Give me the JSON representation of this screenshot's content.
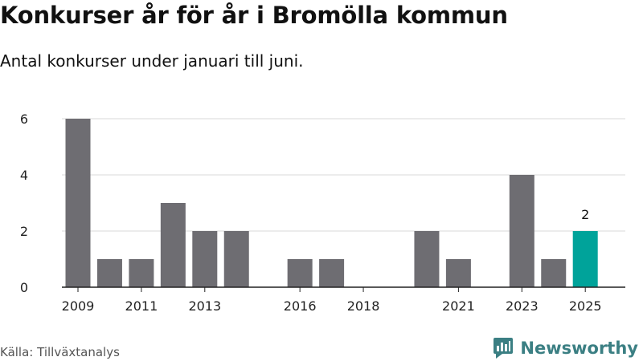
{
  "header": {
    "title": "Konkurser år för år i Bromölla kommun",
    "subtitle": "Antal konkurser under januari till juni."
  },
  "footer": {
    "source": "Källa: Tillväxtanalys",
    "brand": "Newsworthy",
    "brand_icon": "newsworthy-logo-icon"
  },
  "colors": {
    "bar": "#6e6d72",
    "highlight": "#00a39a",
    "grid": "#d9d9d9",
    "axis": "#222222",
    "brand": "#3b7f83"
  },
  "chart_data": {
    "type": "bar",
    "title": "Konkurser år för år i Bromölla kommun",
    "subtitle": "Antal konkurser under januari till juni.",
    "xlabel": "",
    "ylabel": "",
    "categories": [
      "2009",
      "2010",
      "2011",
      "2012",
      "2013",
      "2014",
      "2015",
      "2016",
      "2017",
      "2018",
      "2019",
      "2020",
      "2021",
      "2022",
      "2023",
      "2024",
      "2025"
    ],
    "values": [
      6,
      1,
      1,
      3,
      2,
      2,
      0,
      1,
      1,
      0,
      0,
      2,
      1,
      0,
      4,
      1,
      2
    ],
    "x_tick_labels": [
      "2009",
      "2011",
      "2013",
      "2016",
      "2018",
      "2021",
      "2023",
      "2025"
    ],
    "y_ticks": [
      0,
      2,
      4,
      6
    ],
    "ylim": [
      0,
      6
    ],
    "grid": true,
    "highlight": {
      "category": "2025",
      "label": "2"
    }
  }
}
